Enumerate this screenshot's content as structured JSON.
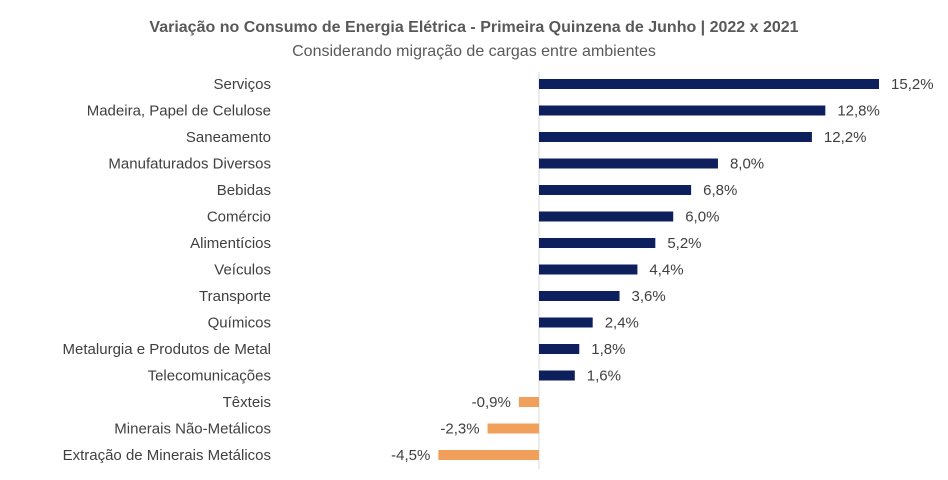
{
  "chart_data": {
    "type": "bar",
    "orientation": "horizontal",
    "title": "Variação no Consumo de Energia Elétrica - Primeira Quinzena de Junho | 2022 x 2021",
    "subtitle": "Considerando migração de cargas entre ambientes",
    "categories": [
      "Serviços",
      "Madeira, Papel de Celulose",
      "Saneamento",
      "Manufaturados Diversos",
      "Bebidas",
      "Comércio",
      "Alimentícios",
      "Veículos",
      "Transporte",
      "Químicos",
      "Metalurgia e Produtos de Metal",
      "Telecomunicações",
      "Têxteis",
      "Minerais Não-Metálicos",
      "Extração de Minerais Metálicos"
    ],
    "values": [
      15.2,
      12.8,
      12.2,
      8.0,
      6.8,
      6.0,
      5.2,
      4.4,
      3.6,
      2.4,
      1.8,
      1.6,
      -0.9,
      -2.3,
      -4.5
    ],
    "data_labels": [
      "15,2%",
      "12,8%",
      "12,2%",
      "8,0%",
      "6,8%",
      "6,0%",
      "5,2%",
      "4,4%",
      "3,6%",
      "2,4%",
      "1,8%",
      "1,6%",
      "-0,9%",
      "-2,3%",
      "-4,5%"
    ],
    "xlim": [
      -4.5,
      15.2
    ],
    "grid": false,
    "legend": "none",
    "colors": {
      "positive": "#0d1f5c",
      "negative": "#f0a05a",
      "axis": "#d9d9d9",
      "text": "#404040"
    }
  }
}
